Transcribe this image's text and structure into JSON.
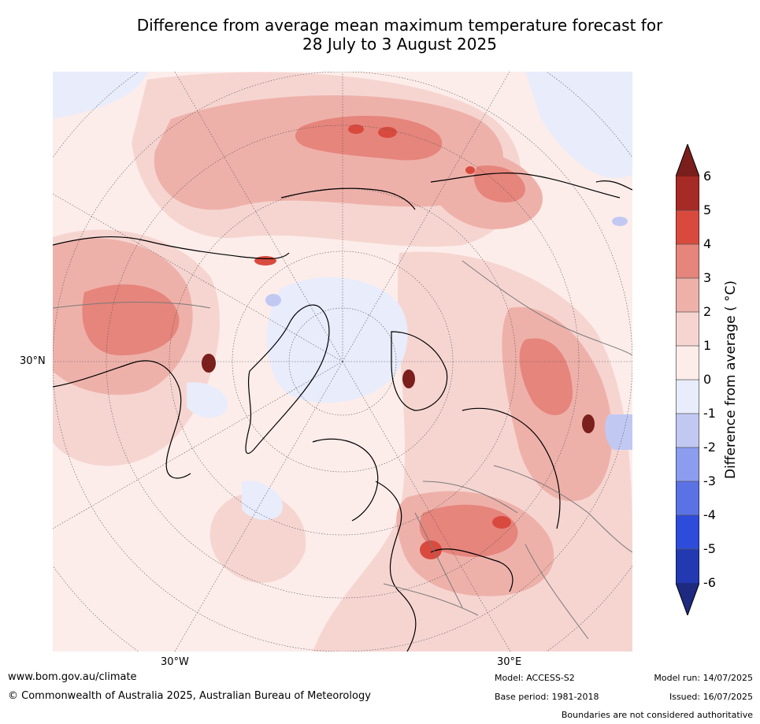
{
  "title": {
    "line1": "Difference from average mean maximum temperature forecast for",
    "line2": "28 July to 3 August 2025"
  },
  "map": {
    "projection": "north-polar-stereographic",
    "lat_label": "30°N",
    "lon_labels": [
      "30°W",
      "30°E"
    ]
  },
  "colorbar": {
    "label": "Difference from average ( °C)",
    "extend": "both",
    "ticks": [
      "6",
      "5",
      "4",
      "3",
      "2",
      "1",
      "0",
      "-1",
      "-2",
      "-3",
      "-4",
      "-5",
      "-6"
    ],
    "colors": {
      "above_6": "#7b1f1c",
      "5_to_6": "#a62a25",
      "4_to_5": "#d94a3e",
      "3_to_4": "#e6857c",
      "2_to_3": "#eeb1aa",
      "1_to_2": "#f6d5d1",
      "0_to_1": "#fcedea",
      "m1_to_0": "#e8ecfb",
      "m2_to_m1": "#c1c9f3",
      "m3_to_m2": "#8c9cef",
      "m4_to_m3": "#5a72e4",
      "m5_to_m4": "#2e4cdb",
      "m6_to_m5": "#2339b2",
      "below_m6": "#1d2a7f"
    }
  },
  "footer": {
    "website": "www.bom.gov.au/climate",
    "copyright": "© Commonwealth of Australia 2025, Australian Bureau of Meteorology",
    "model": "Model: ACCESS-S2",
    "base_period": "Base period: 1981-2018",
    "model_run": "Model run: 14/07/2025",
    "issued": "Issued: 16/07/2025",
    "disclaimer": "Boundaries are not considered authoritative"
  }
}
